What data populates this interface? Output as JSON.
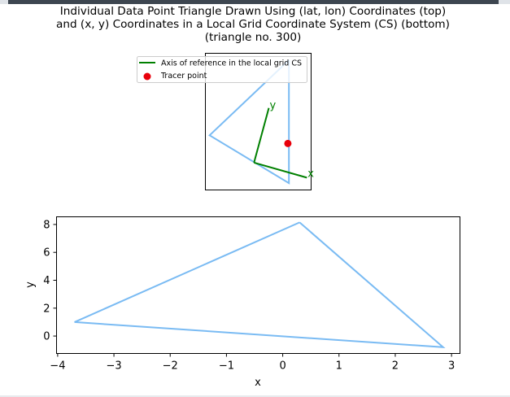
{
  "title": "Individual Data Point Triangle Drawn Using (lat, lon) Coordinates (top)\nand (x, y) Coordinates in a Local Grid Coordinate System (CS) (bottom)\n(triangle no. 300)",
  "colors": {
    "triangle": "#7ABBF3",
    "axis_ref": "#008000",
    "tracer": "#E8000B"
  },
  "chart_data": [
    {
      "type": "line",
      "panel": "top",
      "legend": {
        "placement": "top-left",
        "entries": [
          "Axis of reference in the local grid CS",
          "Tracer point"
        ]
      },
      "axes_visible": false,
      "xlim": [
        0,
        1
      ],
      "ylim": [
        0,
        1
      ],
      "triangle": [
        [
          0.79,
          0.95
        ],
        [
          0.04,
          0.4
        ],
        [
          0.79,
          0.05
        ]
      ],
      "axis_of_reference": {
        "origin": [
          0.46,
          0.2
        ],
        "x_end": [
          0.96,
          0.09
        ],
        "y_end": [
          0.6,
          0.6
        ],
        "x_label": "x",
        "y_label": "y"
      },
      "tracer_point": [
        0.78,
        0.34
      ]
    },
    {
      "type": "line",
      "panel": "bottom",
      "xlabel": "x",
      "ylabel": "y",
      "xlim": [
        -4.02,
        3.15
      ],
      "ylim": [
        -1.25,
        8.55
      ],
      "xticks": [
        -4,
        -3,
        -2,
        -1,
        0,
        1,
        2,
        3
      ],
      "yticks": [
        0,
        2,
        4,
        6,
        8
      ],
      "x_tick_labels": [
        "−4",
        "−3",
        "−2",
        "−1",
        "0",
        "1",
        "2",
        "3"
      ],
      "y_tick_labels": [
        "0",
        "2",
        "4",
        "6",
        "8"
      ],
      "grid": false,
      "triangle": {
        "x": [
          0.3,
          -3.7,
          2.85,
          0.3
        ],
        "y": [
          8.15,
          1.0,
          -0.8,
          8.15
        ]
      }
    }
  ]
}
